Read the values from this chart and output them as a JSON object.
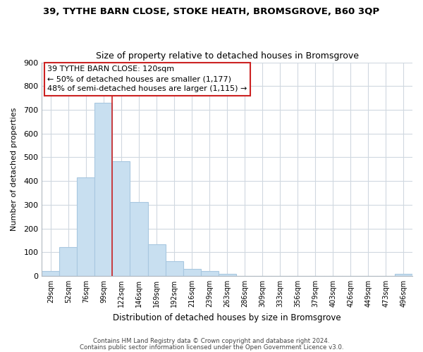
{
  "title": "39, TYTHE BARN CLOSE, STOKE HEATH, BROMSGROVE, B60 3QP",
  "subtitle": "Size of property relative to detached houses in Bromsgrove",
  "xlabel": "Distribution of detached houses by size in Bromsgrove",
  "ylabel": "Number of detached properties",
  "bar_labels": [
    "29sqm",
    "52sqm",
    "76sqm",
    "99sqm",
    "122sqm",
    "146sqm",
    "169sqm",
    "192sqm",
    "216sqm",
    "239sqm",
    "263sqm",
    "286sqm",
    "309sqm",
    "333sqm",
    "356sqm",
    "379sqm",
    "403sqm",
    "426sqm",
    "449sqm",
    "473sqm",
    "496sqm"
  ],
  "bar_values": [
    22,
    120,
    416,
    730,
    483,
    312,
    133,
    63,
    28,
    20,
    10,
    0,
    0,
    0,
    0,
    0,
    0,
    0,
    0,
    0,
    8
  ],
  "bar_color": "#c8dff0",
  "bar_edge_color": "#a8c8e0",
  "vline_x_index": 3.5,
  "vline_color": "#cc2222",
  "annotation_line1": "39 TYTHE BARN CLOSE: 120sqm",
  "annotation_line2": "← 50% of detached houses are smaller (1,177)",
  "annotation_line3": "48% of semi-detached houses are larger (1,115) →",
  "ylim": [
    0,
    900
  ],
  "yticks": [
    0,
    100,
    200,
    300,
    400,
    500,
    600,
    700,
    800,
    900
  ],
  "footer_line1": "Contains HM Land Registry data © Crown copyright and database right 2024.",
  "footer_line2": "Contains public sector information licensed under the Open Government Licence v3.0.",
  "bg_color": "#ffffff",
  "grid_color": "#d0d8e0",
  "spine_color": "#b0b8c0"
}
